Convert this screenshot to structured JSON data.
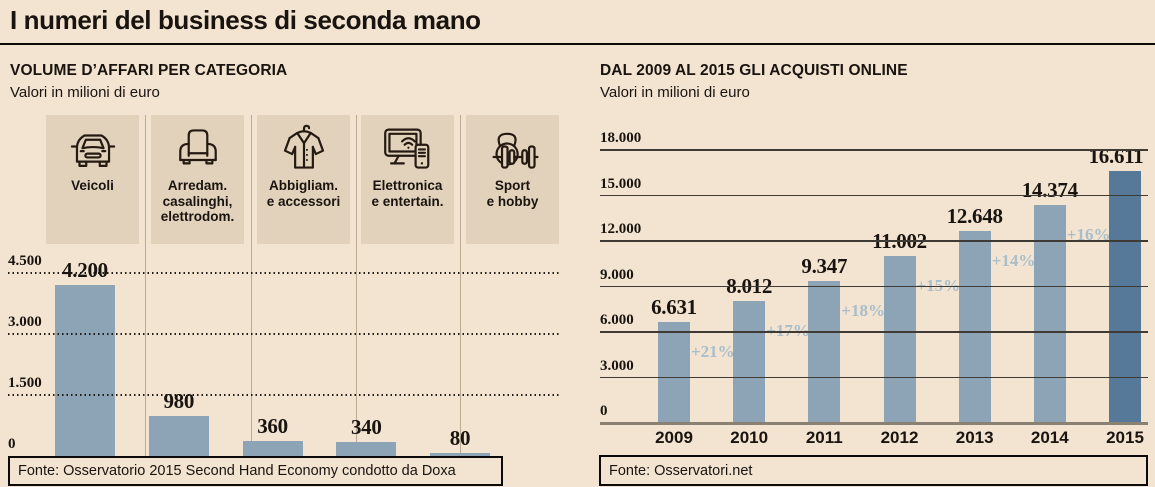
{
  "page": {
    "title": "I numeri del business di seconda mano"
  },
  "colors": {
    "background": "#f2e4d0",
    "category_box": "#e3d2bb",
    "bar_light": "#8ca4b6",
    "bar_dark": "#56799a",
    "growth_label": "#a9bdcb",
    "text": "#191410"
  },
  "chart_data": [
    {
      "type": "bar",
      "title": "VOLUME D’AFFARI PER CATEGORIA",
      "subtitle": "Valori in milioni di euro",
      "categories": [
        "Veicoli",
        "Arredam. casalinghi, elettrodom.",
        "Abbigliam. e accessori",
        "Elettronica e entertain.",
        "Sport e hobby"
      ],
      "category_labels": [
        "Veicoli",
        "Arredam.\ncasalinghi,\nelettrodom.",
        "Abbigliam.\ne accessori",
        "Elettronica\ne entertain.",
        "Sport\ne hobby"
      ],
      "icons": [
        "car-icon",
        "armchair-icon",
        "jacket-icon",
        "monitor-phone-icon",
        "kettlebell-dumbbell-icon"
      ],
      "values": [
        4200,
        980,
        360,
        340,
        80
      ],
      "value_labels": [
        "4.200",
        "980",
        "360",
        "340",
        "80"
      ],
      "y_ticks": [
        {
          "value": 4500,
          "label": "4.500"
        },
        {
          "value": 3000,
          "label": "3.000"
        },
        {
          "value": 1500,
          "label": "1.500"
        },
        {
          "value": 0,
          "label": "0"
        }
      ],
      "ylim": [
        0,
        4500
      ],
      "grid": "dotted-horizontal",
      "legend": "none",
      "source": "Fonte: Osservatorio 2015 Second Hand Economy condotto da Doxa"
    },
    {
      "type": "bar",
      "title": "DAL 2009 AL 2015 GLI ACQUISTI ONLINE",
      "subtitle": "Valori in milioni di euro",
      "categories": [
        "2009",
        "2010",
        "2011",
        "2012",
        "2013",
        "2014",
        "2015"
      ],
      "values": [
        6631,
        8012,
        9347,
        11002,
        12648,
        14374,
        16611
      ],
      "value_labels": [
        "6.631",
        "8.012",
        "9.347",
        "11.002",
        "12.648",
        "14.374",
        "16.611"
      ],
      "growth_labels": [
        "+21%",
        "+17%",
        "+18%",
        "+15%",
        "+14%",
        "+16%"
      ],
      "y_ticks": [
        {
          "value": 18000,
          "label": "18.000"
        },
        {
          "value": 15000,
          "label": "15.000"
        },
        {
          "value": 12000,
          "label": "12.000"
        },
        {
          "value": 9000,
          "label": "9.000"
        },
        {
          "value": 6000,
          "label": "6.000"
        },
        {
          "value": 3000,
          "label": "3.000"
        },
        {
          "value": 0,
          "label": "0"
        }
      ],
      "ylim": [
        0,
        18000
      ],
      "grid": "solid-horizontal",
      "legend": "none",
      "highlight_last_bar": true,
      "source": "Fonte: Osservatori.net"
    }
  ]
}
